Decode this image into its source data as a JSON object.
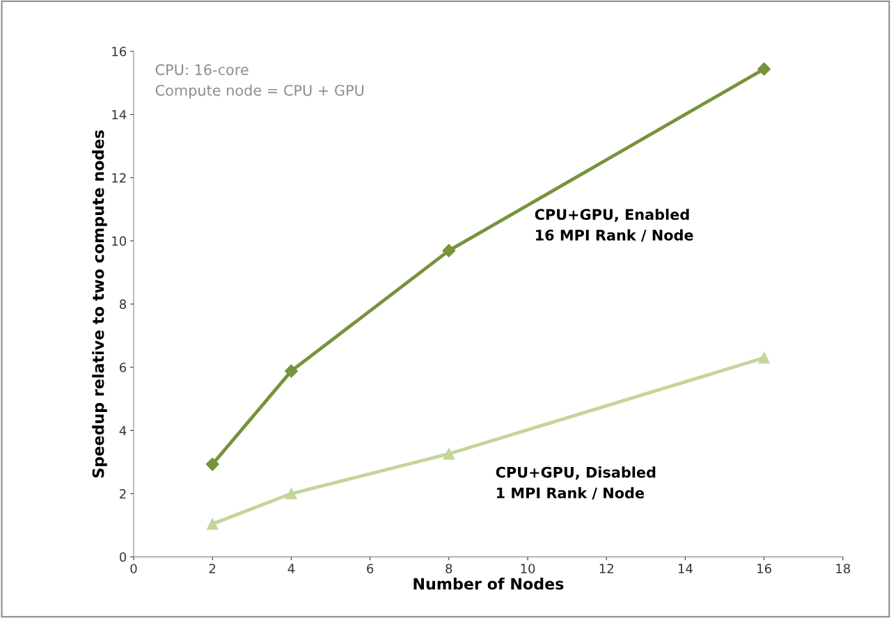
{
  "chart_data": {
    "type": "line",
    "xlabel": "Number of Nodes",
    "ylabel": "Speedup relative to two compute nodes",
    "x": [
      2,
      4,
      8,
      16
    ],
    "series": [
      {
        "name": "CPU+GPU, Enabled\n16 MPI Rank / Node",
        "color": "#77933c",
        "marker": "diamond",
        "values": [
          2.93,
          5.88,
          9.69,
          15.44
        ]
      },
      {
        "name": "CPU+GPU, Disabled\n1 MPI Rank / Node",
        "color": "#c3d69b",
        "marker": "triangle",
        "values": [
          1.04,
          2.0,
          3.26,
          6.3
        ]
      }
    ],
    "xlim": [
      0,
      18
    ],
    "xticks": [
      0,
      2,
      4,
      6,
      8,
      10,
      12,
      14,
      16,
      18
    ],
    "ylim": [
      0,
      16
    ],
    "yticks": [
      0,
      2,
      4,
      6,
      8,
      10,
      12,
      14,
      16
    ],
    "annotations": [
      "CPU: 16-core",
      "Compute node = CPU + GPU"
    ],
    "grid": false,
    "legend": false,
    "line_style": "solid"
  }
}
